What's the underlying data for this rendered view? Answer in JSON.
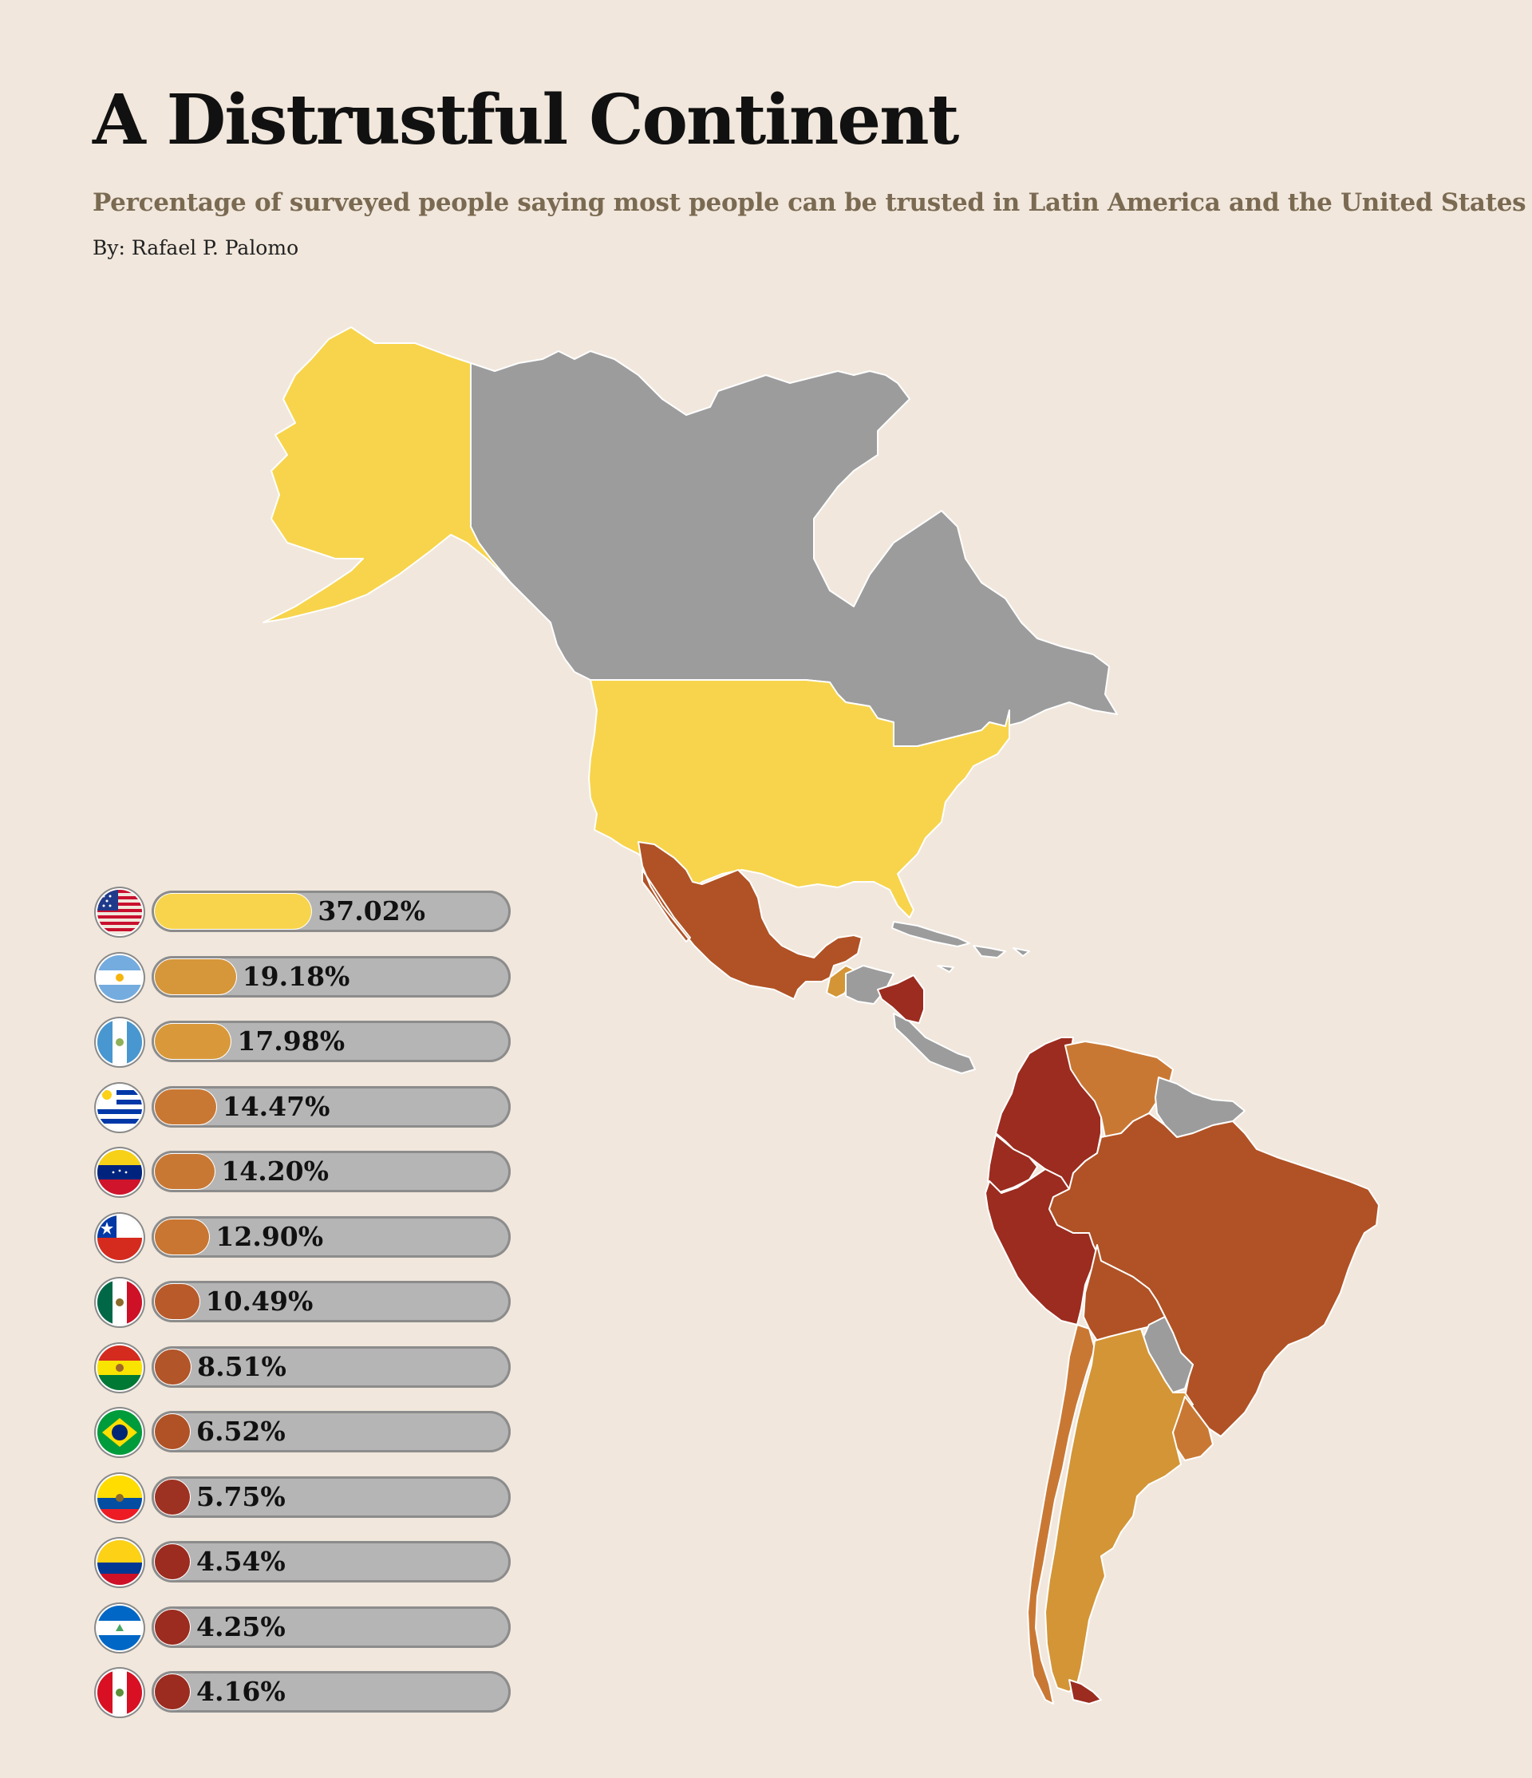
{
  "header": {
    "title": "A Distrustful Continent",
    "subtitle": "Percentage of surveyed people saying most people can be trusted in Latin America and the United States",
    "byline": "By: Rafael P. Palomo"
  },
  "colors": {
    "background": "#f1e7dc",
    "no_data": "#9c9c9c",
    "track": "#b5b5b5",
    "scale_high": "#f7d44b",
    "scale_mid_high": "#d39536",
    "scale_mid": "#c97834",
    "scale_mid_low": "#b05225",
    "scale_low": "#9b2c1f"
  },
  "chart_data": {
    "type": "bar",
    "categories": [
      "United States",
      "Argentina",
      "Guatemala",
      "Uruguay",
      "Venezuela",
      "Chile",
      "Mexico",
      "Bolivia",
      "Brazil",
      "Ecuador",
      "Colombia",
      "Nicaragua",
      "Peru"
    ],
    "values": [
      37.02,
      19.18,
      17.98,
      14.47,
      14.2,
      12.9,
      10.49,
      8.51,
      6.52,
      5.75,
      4.54,
      4.25,
      4.16
    ],
    "labels": [
      "37.02%",
      "19.18%",
      "17.98%",
      "14.47%",
      "14.20%",
      "12.90%",
      "10.49%",
      "8.51%",
      "6.52%",
      "5.75%",
      "4.54%",
      "4.25%",
      "4.16%"
    ],
    "colors": [
      "#f7d44b",
      "#d6963a",
      "#d9993a",
      "#c97834",
      "#c97834",
      "#c87632",
      "#b85a2a",
      "#b25528",
      "#b05225",
      "#9e3222",
      "#9b2c1f",
      "#9b2c1f",
      "#9b2c1f"
    ],
    "flags": [
      "us-flag-icon",
      "argentina-flag-icon",
      "guatemala-flag-icon",
      "uruguay-flag-icon",
      "venezuela-flag-icon",
      "chile-flag-icon",
      "mexico-flag-icon",
      "bolivia-flag-icon",
      "brazil-flag-icon",
      "ecuador-flag-icon",
      "colombia-flag-icon",
      "nicaragua-flag-icon",
      "peru-flag-icon"
    ],
    "xlim": [
      0,
      100
    ]
  },
  "map": {
    "regions": [
      {
        "name": "Alaska",
        "color": "#f7d44b"
      },
      {
        "name": "Canada",
        "color": "#9c9c9c"
      },
      {
        "name": "United States",
        "color": "#f7d44b"
      },
      {
        "name": "Mexico",
        "color": "#b05225"
      },
      {
        "name": "Guatemala",
        "color": "#d39536"
      },
      {
        "name": "Central America (no data)",
        "color": "#9c9c9c"
      },
      {
        "name": "Nicaragua",
        "color": "#9b2c1f"
      },
      {
        "name": "Colombia",
        "color": "#9b2c1f"
      },
      {
        "name": "Venezuela",
        "color": "#c97834"
      },
      {
        "name": "Guianas",
        "color": "#9c9c9c"
      },
      {
        "name": "Ecuador",
        "color": "#9b2c1f"
      },
      {
        "name": "Peru",
        "color": "#9b2c1f"
      },
      {
        "name": "Brazil",
        "color": "#b05225"
      },
      {
        "name": "Bolivia",
        "color": "#b05225"
      },
      {
        "name": "Paraguay",
        "color": "#9c9c9c"
      },
      {
        "name": "Chile",
        "color": "#c97834"
      },
      {
        "name": "Argentina",
        "color": "#d39536"
      },
      {
        "name": "Uruguay",
        "color": "#c97834"
      },
      {
        "name": "Tierra del Fuego tip",
        "color": "#9b2c1f"
      },
      {
        "name": "Caribbean islands",
        "color": "#9c9c9c"
      }
    ]
  }
}
